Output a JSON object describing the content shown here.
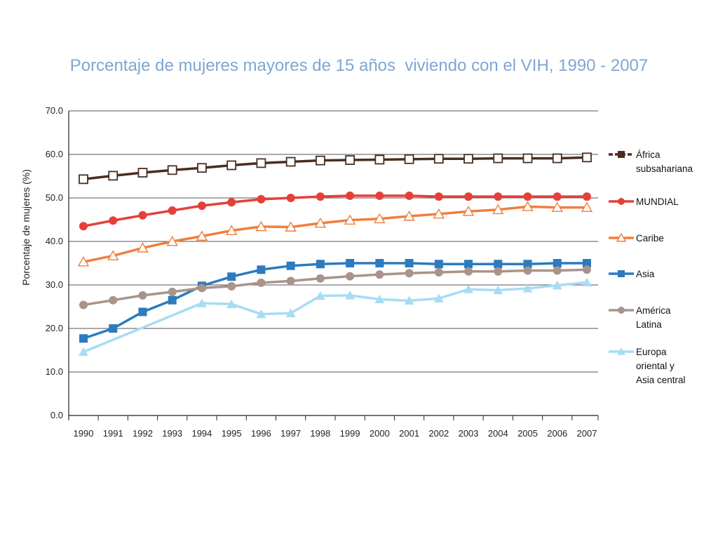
{
  "chart_data": {
    "type": "line",
    "title": "Porcentaje de mujeres mayores de 15 años  viviendo con el VIH, 1990 - 2007",
    "xlabel": "",
    "ylabel": "Porcentaje de mujeres (%)",
    "ylim": [
      0,
      70
    ],
    "y_ticks": [
      "0.0",
      "10.0",
      "20.0",
      "30.0",
      "40.0",
      "50.0",
      "60.0",
      "70.0"
    ],
    "categories": [
      "1990",
      "1991",
      "1992",
      "1993",
      "1994",
      "1995",
      "1996",
      "1997",
      "1998",
      "1999",
      "2000",
      "2001",
      "2002",
      "2003",
      "2004",
      "2005",
      "2006",
      "2007"
    ],
    "grid": "horizontal",
    "legend_position": "right",
    "series": [
      {
        "name": "África subsahariana",
        "legend_lines": [
          "África",
          "subsahariana"
        ],
        "color": "#4a2e1e",
        "marker": "square-open",
        "values": [
          54.3,
          55.1,
          55.8,
          56.4,
          56.9,
          57.5,
          58.0,
          58.3,
          58.6,
          58.7,
          58.8,
          58.9,
          59.0,
          59.0,
          59.1,
          59.1,
          59.1,
          59.3
        ]
      },
      {
        "name": "MUNDIAL",
        "legend_lines": [
          "MUNDIAL"
        ],
        "color": "#e4403a",
        "marker": "circle",
        "values": [
          43.5,
          44.8,
          46.0,
          47.1,
          48.2,
          49.0,
          49.7,
          50.0,
          50.3,
          50.5,
          50.5,
          50.5,
          50.3,
          50.3,
          50.3,
          50.3,
          50.3,
          50.3
        ]
      },
      {
        "name": "Caribe",
        "legend_lines": [
          "Caribe"
        ],
        "color": "#f07f3c",
        "marker": "triangle-open",
        "values": [
          35.3,
          36.7,
          38.5,
          40.0,
          41.2,
          42.5,
          43.4,
          43.3,
          44.2,
          44.9,
          45.2,
          45.8,
          46.3,
          46.9,
          47.3,
          48.0,
          47.8,
          47.8
        ]
      },
      {
        "name": "Asia",
        "legend_lines": [
          "Asia"
        ],
        "color": "#2b7bbe",
        "marker": "square",
        "values": [
          17.7,
          20.0,
          23.8,
          26.5,
          29.8,
          31.9,
          33.5,
          34.4,
          34.8,
          35.0,
          35.0,
          35.0,
          34.8,
          34.8,
          34.8,
          34.8,
          35.0,
          35.0
        ]
      },
      {
        "name": "América Latina",
        "legend_lines": [
          "América",
          "Latina"
        ],
        "color": "#a99489",
        "marker": "circle",
        "values": [
          25.4,
          26.5,
          27.6,
          28.4,
          29.3,
          29.7,
          30.5,
          30.9,
          31.5,
          32.0,
          32.4,
          32.7,
          32.9,
          33.1,
          33.1,
          33.3,
          33.3,
          33.5
        ]
      },
      {
        "name": "Europa oriental y Asia central",
        "legend_lines": [
          "Europa",
          "oriental y",
          "Asia central"
        ],
        "color": "#a8dcf4",
        "marker": "triangle",
        "values": [
          14.6,
          null,
          null,
          null,
          25.8,
          25.6,
          23.3,
          23.5,
          27.5,
          27.6,
          26.7,
          26.4,
          26.9,
          29.0,
          28.8,
          29.2,
          29.9,
          30.6
        ]
      }
    ]
  }
}
